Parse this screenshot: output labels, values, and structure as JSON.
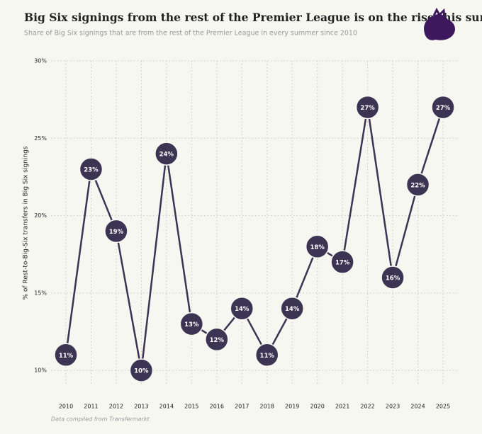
{
  "chart_data": {
    "type": "line",
    "title": "Big Six signings from the rest of the Premier League is on the rise this summer",
    "subtitle": "Share of Big Six signings that are from the rest of the Premier League in every summer since 2010",
    "y_label": "% of Rest-to-Big-Six transfers in Big Six signings",
    "source": "Data compiled from Transfermarkt",
    "categories": [
      "2010",
      "2011",
      "2012",
      "2013",
      "2014",
      "2015",
      "2016",
      "2017",
      "2018",
      "2019",
      "2020",
      "2021",
      "2022",
      "2023",
      "2024",
      "2025"
    ],
    "values": [
      11,
      23,
      19,
      10,
      24,
      13,
      12,
      14,
      11,
      14,
      18,
      17,
      27,
      16,
      22,
      27
    ],
    "value_labels": [
      "11%",
      "23%",
      "19%",
      "10%",
      "24%",
      "13%",
      "12%",
      "14%",
      "11%",
      "14%",
      "18%",
      "17%",
      "27%",
      "16%",
      "22%",
      "27%"
    ],
    "color": "#3b3453",
    "ylim": [
      9,
      30
    ],
    "yticks": [
      {
        "value": 10,
        "label": "10%"
      },
      {
        "value": 15,
        "label": "15%"
      },
      {
        "value": 20,
        "label": "20%"
      },
      {
        "value": 25,
        "label": "25%"
      },
      {
        "value": 30,
        "label": "30%"
      }
    ],
    "grid": true
  }
}
